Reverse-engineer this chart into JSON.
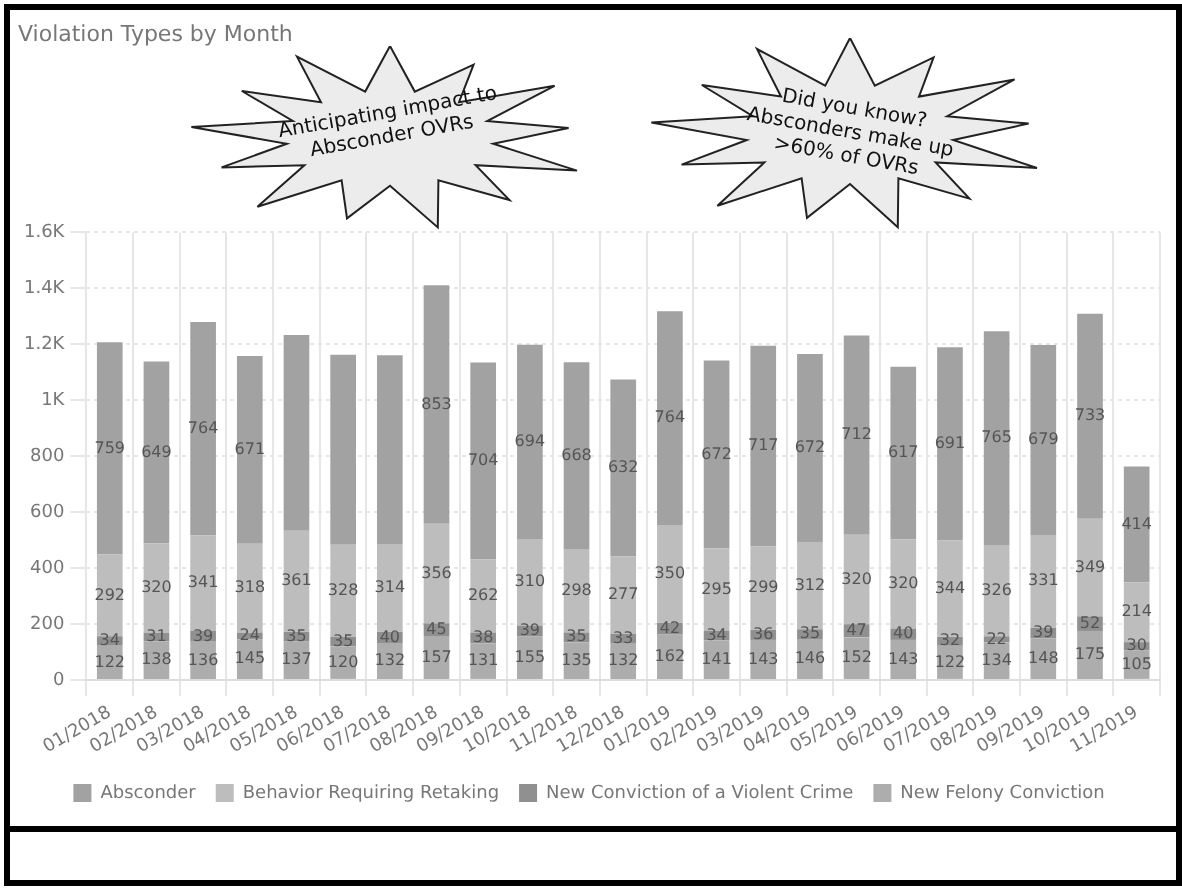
{
  "chart_data": {
    "type": "bar",
    "title": "Violation Types by Month",
    "stacked": true,
    "data_labels": true,
    "grid": true,
    "legend": "bottom",
    "categories": [
      "01/2018",
      "02/2018",
      "03/2018",
      "04/2018",
      "05/2018",
      "06/2018",
      "07/2018",
      "08/2018",
      "09/2018",
      "10/2018",
      "11/2018",
      "12/2018",
      "01/2019",
      "02/2019",
      "03/2019",
      "04/2019",
      "05/2019",
      "06/2019",
      "07/2019",
      "08/2019",
      "09/2019",
      "10/2019",
      "11/2019"
    ],
    "ylim": [
      0,
      1600
    ],
    "yticks": [
      0,
      200,
      400,
      600,
      800,
      {
        "value": 1000,
        "label": "1K"
      },
      {
        "value": 1200,
        "label": "1.2K"
      },
      {
        "value": 1400,
        "label": "1.4K"
      },
      {
        "value": 1600,
        "label": "1.6K"
      }
    ],
    "series": [
      {
        "name": "New Felony Conviction",
        "color": "#adadad",
        "values": [
          122,
          138,
          136,
          145,
          137,
          120,
          132,
          157,
          131,
          155,
          135,
          132,
          162,
          141,
          143,
          146,
          152,
          143,
          122,
          134,
          148,
          175,
          105
        ]
      },
      {
        "name": "New Conviction of a Violent Crime",
        "color": "#909090",
        "values": [
          34,
          31,
          39,
          24,
          35,
          35,
          40,
          45,
          38,
          39,
          35,
          33,
          42,
          34,
          36,
          35,
          47,
          40,
          32,
          22,
          39,
          52,
          30
        ]
      },
      {
        "name": "Behavior Requiring Retaking",
        "color": "#bdbdbd",
        "values": [
          292,
          320,
          341,
          318,
          361,
          328,
          314,
          356,
          262,
          310,
          298,
          277,
          350,
          295,
          299,
          312,
          320,
          320,
          344,
          326,
          331,
          349,
          214
        ]
      },
      {
        "name": "Absconder",
        "color": "#a2a2a2",
        "values": [
          759,
          649,
          764,
          671,
          700,
          680,
          675,
          853,
          704,
          694,
          668,
          632,
          764,
          672,
          717,
          672,
          712,
          617,
          691,
          765,
          679,
          733,
          414
        ],
        "value_labels": [
          "759",
          "649",
          "764",
          "671",
          null,
          null,
          null,
          "853",
          "704",
          "694",
          "668",
          "632",
          "764",
          "672",
          "717",
          "672",
          "712",
          "617",
          "691",
          "765",
          "679",
          "733",
          "414"
        ]
      }
    ],
    "annotations": [
      "Anticipating impact to Absconder OVRs",
      "Did you know? Absconders make up >60% of OVRs"
    ]
  }
}
